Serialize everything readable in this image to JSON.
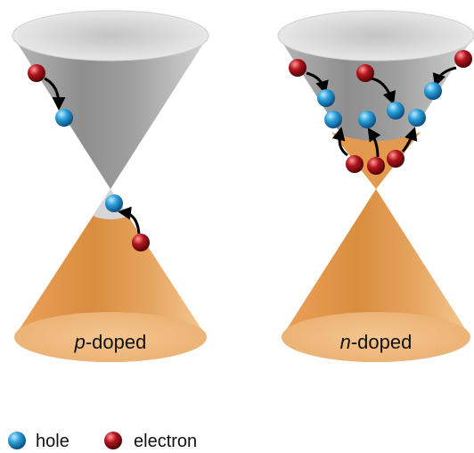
{
  "figure": {
    "left_cone": {
      "label_prefix": "p",
      "label_suffix": "-doped"
    },
    "right_cone": {
      "label_prefix": "n",
      "label_suffix": "-doped"
    }
  },
  "legend": {
    "hole": {
      "label": "hole",
      "color": "#2a9fd8"
    },
    "electron": {
      "label": "electron",
      "color": "#b3141d"
    }
  },
  "colors": {
    "conduction_band": "#9a9a9a",
    "valence_band": "#e39a4e",
    "arrow": "#000000"
  }
}
